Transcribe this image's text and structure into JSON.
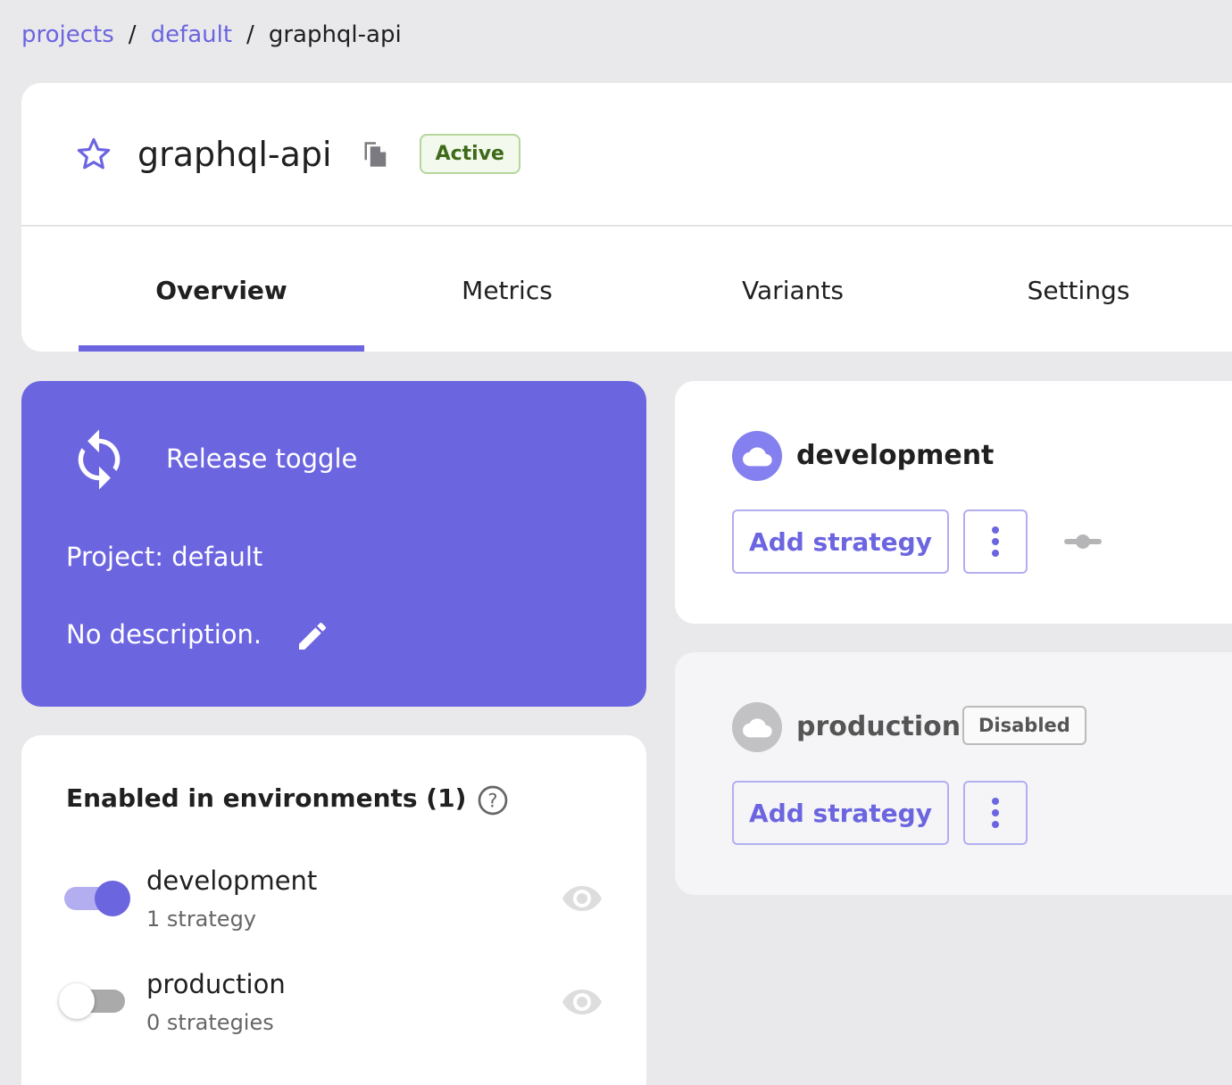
{
  "breadcrumb": {
    "items": [
      "projects",
      "default"
    ],
    "current": "graphql-api"
  },
  "header": {
    "title": "graphql-api",
    "status": "Active"
  },
  "tabs": [
    "Overview",
    "Metrics",
    "Variants",
    "Settings"
  ],
  "info": {
    "type": "Release toggle",
    "project": "Project: default",
    "description": "No description."
  },
  "environments_panel": {
    "title": "Enabled in environments (1)",
    "items": [
      {
        "name": "development",
        "strategies": "1 strategy",
        "enabled": true
      },
      {
        "name": "production",
        "strategies": "0 strategies",
        "enabled": false
      }
    ]
  },
  "env_cards": [
    {
      "name": "development",
      "add_label": "Add strategy"
    },
    {
      "name": "production",
      "badge": "Disabled",
      "add_label": "Add strategy"
    }
  ],
  "colors": {
    "primary": "#6c65e0",
    "active_bg": "#f3f9ec",
    "active_text": "#3e6a1a"
  }
}
